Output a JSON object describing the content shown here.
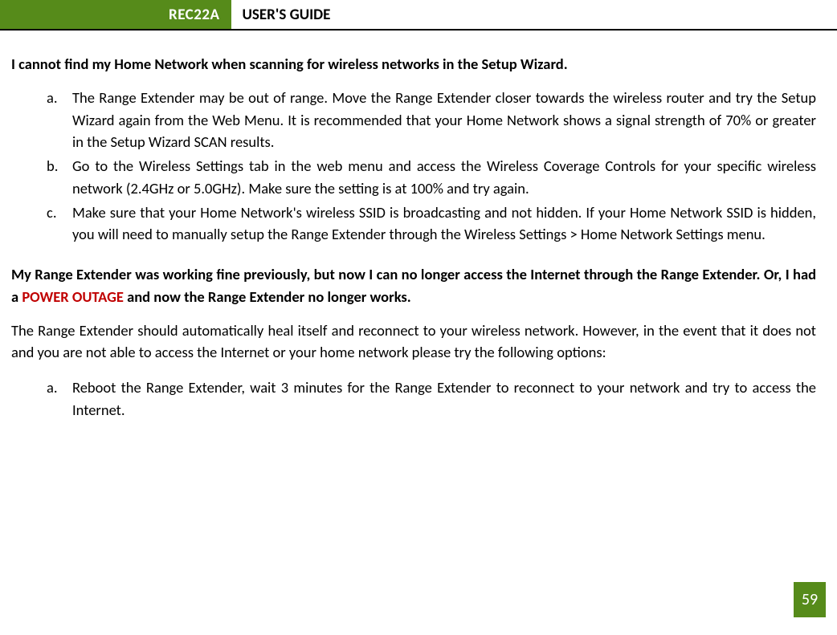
{
  "header": {
    "model": "REC22A",
    "title": "USER'S GUIDE"
  },
  "section1": {
    "heading": "I cannot find my Home Network when scanning for wireless networks in the Setup Wizard.",
    "items": [
      "The Range Extender may be out of range. Move the Range Extender closer towards the wireless router and try the Setup Wizard again from the Web Menu. It is recommended that your Home Network shows a signal strength of 70% or greater in the Setup Wizard SCAN results.",
      "Go to the Wireless Settings tab in the web menu and access the Wireless Coverage Controls for your specific wireless network (2.4GHz or 5.0GHz). Make sure the setting is at 100% and try again.",
      "Make sure that your Home Network's wireless SSID is broadcasting and not hidden. If your Home Network SSID is hidden, you will need to manually setup the Range Extender through the Wireless Settings > Home Network Settings menu."
    ]
  },
  "section2": {
    "heading_part1": "My Range Extender was working fine previously, but now I can no longer access the Internet through the Range Extender. Or, I had a ",
    "heading_highlight": "POWER OUTAGE",
    "heading_part2": " and now the Range Extender no longer works.",
    "paragraph": "The Range Extender should automatically heal itself and reconnect to your wireless network. However, in the event that it does not and you are not able to access the Internet or your home network please try the following options:",
    "items": [
      "Reboot the Range Extender, wait 3 minutes for the Range Extender to reconnect to your network and try to access the Internet."
    ]
  },
  "page_number": "59",
  "colors": {
    "brand_green": "#568b1a",
    "highlight_red": "#c00000",
    "text": "#000000",
    "bg": "#ffffff"
  },
  "markers": [
    "a.",
    "b.",
    "c."
  ]
}
